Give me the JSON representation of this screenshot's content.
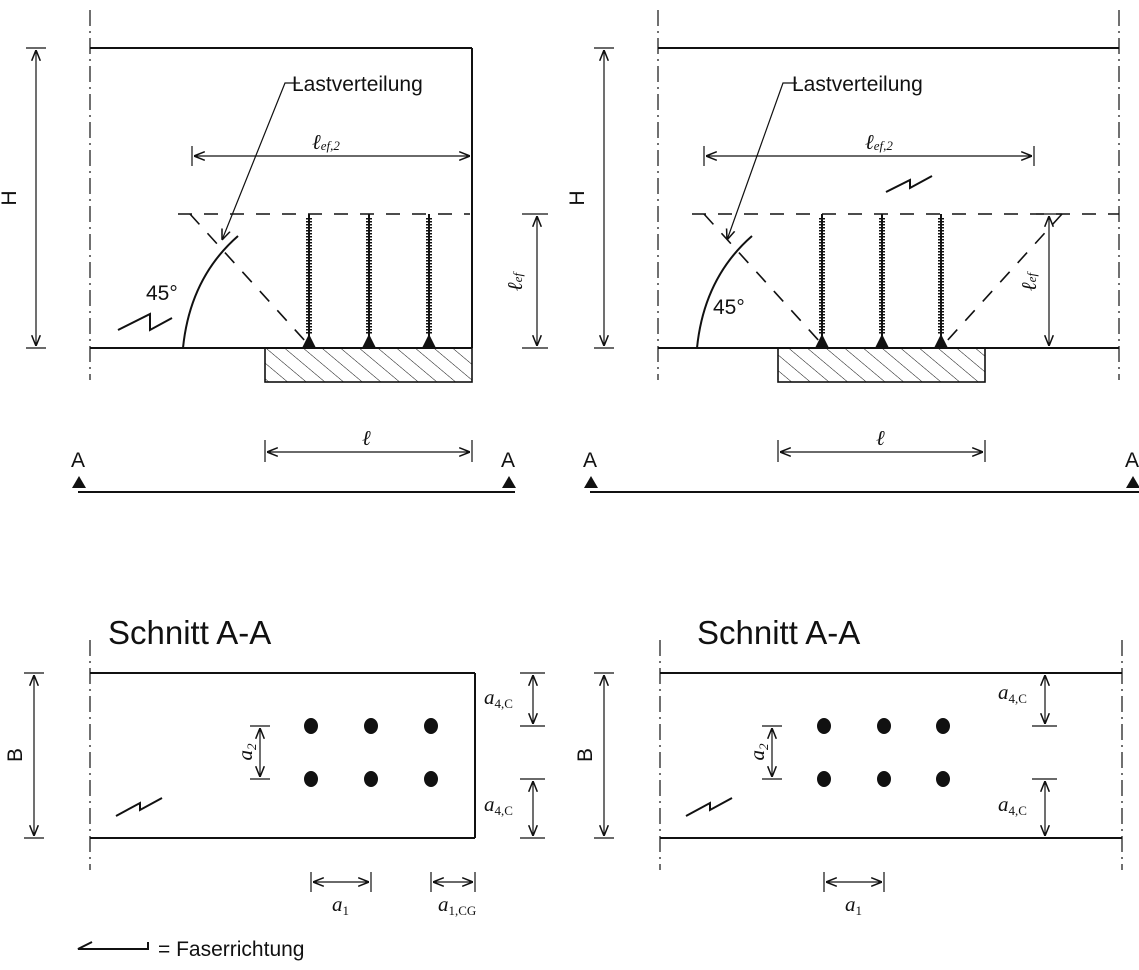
{
  "labels": {
    "load_distribution": "Lastverteilung",
    "l_ef2_main": "ℓ",
    "l_ef2_sub": "ef,2",
    "l_ef_main": "ℓ",
    "l_ef_sub": "ef",
    "l": "ℓ",
    "angle": "45°",
    "height": "H",
    "width": "B",
    "section_marker": "A",
    "section_title": "Schnitt A-A",
    "a2_main": "a",
    "a2_sub": "2",
    "a4c_main": "a",
    "a4c_sub": "4,C",
    "a1_main": "a",
    "a1_sub": "1",
    "a1cg_main": "a",
    "a1cg_sub": "1,CG",
    "legend": "= Faserrichtung"
  },
  "colors": {
    "line": "#111111",
    "background": "#ffffff"
  },
  "icons": {
    "grain_direction": "half-arrow-icon",
    "section_marker": "triangle-icon"
  }
}
